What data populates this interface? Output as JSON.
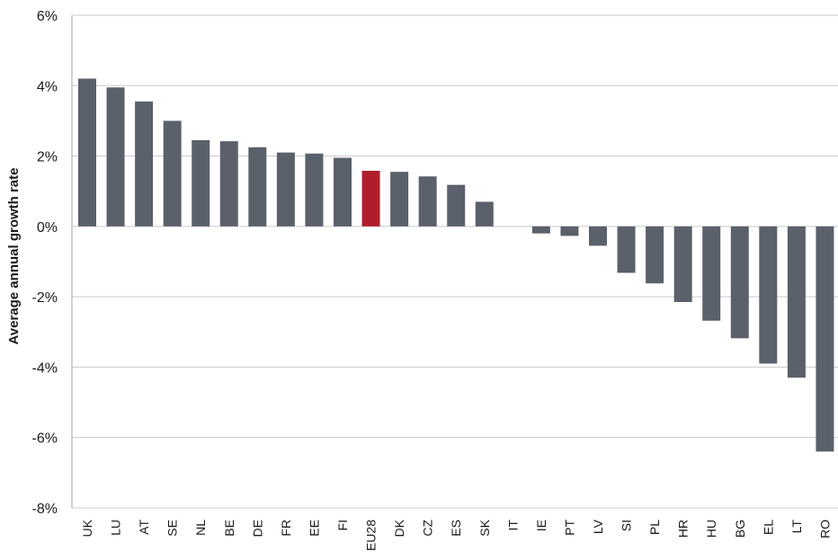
{
  "chart_data": {
    "type": "bar",
    "title": "",
    "xlabel": "",
    "ylabel": "Average annual growth rate",
    "ylim": [
      -8,
      6
    ],
    "yticks": [
      6,
      4,
      2,
      0,
      -2,
      -4,
      -6,
      -8
    ],
    "ytick_format": "%",
    "grid": true,
    "categories": [
      "UK",
      "LU",
      "AT",
      "SE",
      "NL",
      "BE",
      "DE",
      "FR",
      "EE",
      "FI",
      "EU28",
      "DK",
      "CZ",
      "ES",
      "SK",
      "IT",
      "IE",
      "PT",
      "LV",
      "SI",
      "PL",
      "HR",
      "HU",
      "BG",
      "EL",
      "LT",
      "RO"
    ],
    "values": [
      4.2,
      3.95,
      3.55,
      3.0,
      2.45,
      2.42,
      2.25,
      2.1,
      2.07,
      1.95,
      1.58,
      1.55,
      1.42,
      1.18,
      0.7,
      0.0,
      -0.2,
      -0.27,
      -0.55,
      -1.32,
      -1.62,
      -2.15,
      -2.68,
      -3.18,
      -3.9,
      -4.3,
      -6.4
    ],
    "highlight_category": "EU28",
    "colors": {
      "bar": "#5a616b",
      "highlight": "#b01e2e",
      "grid": "#c9c9c9",
      "axis": "#a6a6a6"
    }
  }
}
